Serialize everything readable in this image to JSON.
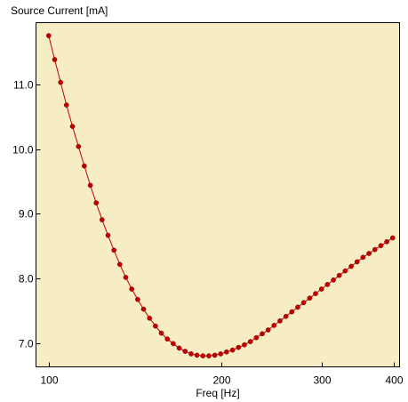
{
  "chart_data": {
    "type": "line",
    "title": "Source Current [mA]",
    "xlabel": "Freq [Hz]",
    "ylabel": "",
    "xscale": "log",
    "xlim": [
      95,
      410
    ],
    "ylim": [
      6.64,
      11.95
    ],
    "grid": false,
    "legend": "none",
    "x_ticks": [
      100,
      200,
      300,
      400
    ],
    "x_tick_labels": [
      "100",
      "200",
      "300",
      "400"
    ],
    "y_ticks": [
      7.0,
      8.0,
      9.0,
      10.0,
      11.0
    ],
    "y_tick_labels": [
      "7.0",
      "8.0",
      "9.0",
      "10.0",
      "11.0"
    ],
    "colors": {
      "plot_background": "#f7edc4",
      "line": "#c00000",
      "marker": "#c00000"
    },
    "series": [
      {
        "x": [
          100,
          102.4,
          104.9,
          107.4,
          110.0,
          112.7,
          115.4,
          118.2,
          121.0,
          123.9,
          126.9,
          130.0,
          133.1,
          136.3,
          139.6,
          143.0,
          146.4,
          150.0,
          153.6,
          157.3,
          161.1,
          165.0,
          169.0,
          173.1,
          177.3,
          181.5,
          185.9,
          190.4,
          195.0,
          199.7,
          204.5,
          209.4,
          214.5,
          219.7,
          225.0,
          230.4,
          236.0,
          241.7,
          247.5,
          253.5,
          259.6,
          265.8,
          272.3,
          278.8,
          285.6,
          292.5,
          299.5,
          306.8,
          314.2,
          321.8,
          329.5,
          337.5,
          345.6,
          354.0,
          362.5,
          371.3,
          380.3,
          389.4,
          398.8
        ],
        "y": [
          11.75,
          11.38,
          11.03,
          10.68,
          10.35,
          10.04,
          9.74,
          9.44,
          9.17,
          8.91,
          8.67,
          8.44,
          8.22,
          8.02,
          7.84,
          7.68,
          7.53,
          7.39,
          7.27,
          7.16,
          7.07,
          7.0,
          6.93,
          6.88,
          6.84,
          6.82,
          6.81,
          6.81,
          6.82,
          6.84,
          6.87,
          6.9,
          6.94,
          6.98,
          7.03,
          7.09,
          7.15,
          7.21,
          7.28,
          7.35,
          7.42,
          7.49,
          7.56,
          7.63,
          7.7,
          7.77,
          7.84,
          7.91,
          7.98,
          8.05,
          8.12,
          8.19,
          8.26,
          8.33,
          8.39,
          8.45,
          8.51,
          8.57,
          8.63
        ]
      }
    ]
  }
}
